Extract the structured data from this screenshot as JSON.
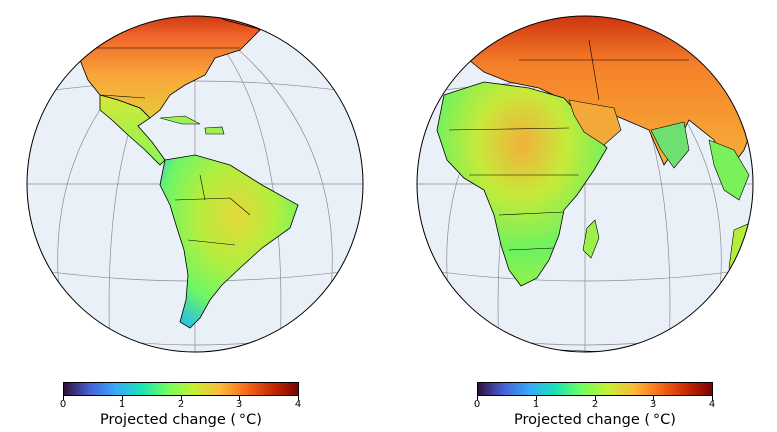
{
  "colorbar": {
    "min": 0,
    "max": 4,
    "ticks": [
      "0",
      "1",
      "2",
      "3",
      "4"
    ],
    "label": "Projected change ( °C)",
    "colors": [
      "#30123b",
      "#4662d7",
      "#36aaf9",
      "#1ae4b6",
      "#72fe5e",
      "#c7ef34",
      "#fabb3a",
      "#f66b19",
      "#ca2a04",
      "#7a0403"
    ]
  },
  "maps": [
    {
      "name": "americas",
      "projection": "orthographic",
      "center_longitude": -60,
      "center_latitude": 10
    },
    {
      "name": "africa-eurasia",
      "projection": "orthographic",
      "center_longitude": 40,
      "center_latitude": 10
    }
  ],
  "style": {
    "ocean": "#eaf0f8",
    "gridline": "#8c8c8c",
    "outline": "#000000"
  }
}
